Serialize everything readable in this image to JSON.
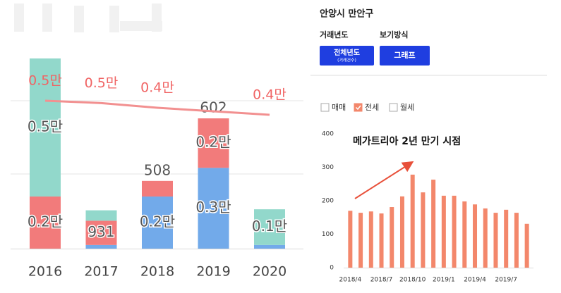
{
  "header": {
    "title": "안양시 만안구"
  },
  "filters": {
    "year_label": "거래년도",
    "year_button": "전체년도",
    "year_button_sub": "(거래건수)",
    "view_label": "보기방식",
    "view_button": "그래프"
  },
  "chart_data": [
    {
      "type": "stacked_bar",
      "categories": [
        "2016",
        "2017",
        "2018",
        "2019",
        "2020"
      ],
      "series": [
        {
          "color": "#72aaea",
          "values": [
            0,
            140,
            2000,
            3100,
            140
          ],
          "value_labels": [
            null,
            null,
            "0.2만",
            "0.3만",
            null
          ]
        },
        {
          "color": "#f27b7b",
          "values": [
            2000,
            931,
            600,
            1900,
            0
          ],
          "value_labels": [
            "0.2만",
            "931",
            null,
            "0.2만",
            null
          ]
        },
        {
          "color": "#92d8cb",
          "values": [
            5300,
            400,
            0,
            0,
            1370
          ],
          "value_labels": [
            "0.5만",
            null,
            null,
            null,
            "0.1만"
          ]
        }
      ],
      "line": {
        "color": "#f29090",
        "values": [
          5000,
          4800,
          4400,
          4100,
          3800
        ],
        "value_labels": [
          "0.5만",
          "0.5만",
          "0.4만",
          null,
          "0.4만"
        ]
      },
      "annotations": [
        {
          "text": "508",
          "x": "2018"
        },
        {
          "text": "602",
          "x": "2019"
        }
      ]
    },
    {
      "type": "bar",
      "annotation": "메가트리아 2년 만기 시점",
      "categories": [
        "2018/4",
        null,
        null,
        "2018/7",
        null,
        null,
        "2018/10",
        null,
        null,
        "2019/1",
        null,
        null,
        "2019/4",
        null,
        null,
        "2019/7",
        null,
        null
      ],
      "series": [
        {
          "name": "매매",
          "visible": false,
          "color": "#ffffff",
          "values": [
            null,
            null,
            null,
            null,
            null,
            null,
            null,
            null,
            null,
            null,
            null,
            null,
            null,
            null,
            null,
            null,
            null,
            null
          ]
        },
        {
          "name": "전세",
          "visible": true,
          "color": "#f3876b",
          "values": [
            170,
            164,
            168,
            162,
            181,
            213,
            278,
            225,
            263,
            215,
            215,
            198,
            189,
            177,
            164,
            173,
            164,
            131
          ]
        },
        {
          "name": "월세",
          "visible": false,
          "color": "#ffffff",
          "values": [
            null,
            null,
            null,
            null,
            null,
            null,
            null,
            null,
            null,
            null,
            null,
            null,
            null,
            null,
            null,
            null,
            null,
            null
          ]
        }
      ],
      "ylim": [
        0,
        400
      ],
      "yticks": [
        0,
        100,
        200,
        300,
        400
      ]
    }
  ]
}
